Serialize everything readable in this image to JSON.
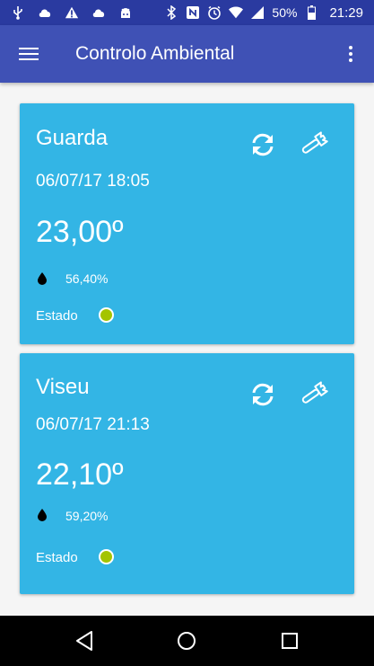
{
  "status_bar": {
    "icons_left": [
      "usb-icon",
      "cloud-icon",
      "warning-icon",
      "cloud-icon",
      "android-icon"
    ],
    "icons_right": [
      "bluetooth-icon",
      "nfc-icon",
      "alarm-icon",
      "wifi-icon",
      "signal-icon"
    ],
    "battery": "50%",
    "time": "21:29"
  },
  "app_bar": {
    "title": "Controlo Ambiental",
    "color": "#3f51b5"
  },
  "cards": [
    {
      "city": "Guarda",
      "datetime": "06/07/17 18:05",
      "temperature": "23,00º",
      "humidity": "56,40%",
      "status_label": "Estado",
      "status_color": "#a4c400"
    },
    {
      "city": "Viseu",
      "datetime": "06/07/17 21:13",
      "temperature": "22,10º",
      "humidity": "59,20%",
      "status_label": "Estado",
      "status_color": "#a4c400"
    }
  ],
  "card_color": "#33b5e5",
  "nav_bar": [
    "back-icon",
    "home-icon",
    "recent-apps-icon"
  ]
}
